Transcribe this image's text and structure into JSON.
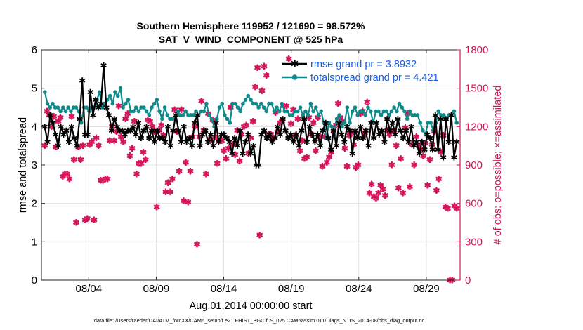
{
  "chart_data": {
    "type": "line",
    "title_line1": "Southern Hemisphere 119952 / 121690 = 98.572%",
    "title_line2": "SAT_V_WIND_COMPONENT @ 525 hPa",
    "xlabel": "Aug.01,2014 00:00:00 start",
    "ylabel_left": "rmse and totalspread",
    "ylabel_right": "# of obs: o=possible; ×=assimilated",
    "footer": "data file: /Users/raeder/DAI/ATM_forcXX/CAM6_setup/f.e21.FHIST_BGC.f09_025.CAM6assim.011/Diags_NTrS_2014-08/obs_diag_output.nc",
    "xlim": [
      0.5,
      31.5
    ],
    "ylim_left": [
      0,
      6
    ],
    "ylim_right": [
      0,
      1800
    ],
    "x_ticks": [
      {
        "value": 4,
        "label": "08/04"
      },
      {
        "value": 9,
        "label": "08/09"
      },
      {
        "value": 14,
        "label": "08/14"
      },
      {
        "value": 19,
        "label": "08/19"
      },
      {
        "value": 24,
        "label": "08/24"
      },
      {
        "value": 29,
        "label": "08/29"
      }
    ],
    "y_ticks_left": [
      "0",
      "1",
      "2",
      "3",
      "4",
      "5",
      "6"
    ],
    "y_ticks_right": [
      "0",
      "300",
      "600",
      "900",
      "1200",
      "1500",
      "1800"
    ],
    "colors": {
      "rmse": "#000000",
      "spread": "#0f8a8a",
      "obs": "#d4145a",
      "legend_text": "#1a5fe0"
    },
    "series": [
      {
        "name": "rmse",
        "legend": "rmse grand pr = 3.8932",
        "values": [
          4.0,
          3.6,
          4.3,
          4.1,
          3.8,
          3.5,
          4.0,
          3.8,
          3.9,
          3.6,
          4.0,
          3.7,
          3.5,
          4.2,
          5.2,
          3.8,
          3.8,
          4.9,
          4.3,
          4.7,
          4.5,
          4.6,
          5.6,
          4.5,
          4.3,
          3.9,
          4.2,
          4.0,
          3.9,
          3.9,
          3.8,
          3.9,
          3.9,
          4.0,
          3.8,
          4.1,
          3.7,
          3.9,
          4.0,
          3.7,
          3.9,
          3.6,
          3.9,
          3.7,
          3.7,
          3.6,
          4.0,
          3.5,
          3.9,
          4.3,
          3.9,
          3.6,
          4.0,
          3.6,
          3.7,
          3.5,
          4.1,
          4.3,
          3.5,
          3.8,
          3.9,
          3.6,
          3.8,
          3.5,
          4.1,
          3.6,
          3.8,
          3.8,
          3.7,
          3.6,
          3.3,
          3.7,
          3.5,
          3.9,
          3.3,
          3.6,
          3.8,
          3.3,
          3.5,
          3.0,
          3.0,
          3.8,
          3.9,
          3.7,
          3.8,
          3.6,
          3.7,
          4.0,
          3.8,
          4.2,
          3.9,
          3.7,
          3.8,
          3.6,
          3.8,
          3.5,
          3.9,
          4.2,
          3.6,
          4.0,
          3.8,
          3.6,
          3.8,
          3.5,
          3.9,
          4.1,
          3.7,
          3.4,
          3.9,
          3.5,
          4.1,
          3.8,
          3.6,
          4.0,
          3.9,
          3.3,
          3.9,
          3.7,
          4.0,
          3.7,
          3.9,
          3.5,
          4.1,
          3.7,
          4.1,
          3.8,
          3.9,
          3.6,
          4.2,
          3.9,
          4.1,
          3.8,
          4.2,
          3.9,
          3.7,
          3.9,
          3.6,
          4.0,
          3.5,
          3.6,
          3.3,
          3.6,
          3.4,
          3.8,
          3.7,
          3.4,
          4.3,
          3.4,
          4.2,
          3.2,
          4.2,
          3.6,
          4.3,
          3.2,
          3.6
        ]
      },
      {
        "name": "totalspread",
        "legend": "totalspread grand pr = 4.421",
        "values": [
          4.9,
          4.6,
          4.5,
          4.6,
          4.5,
          4.5,
          4.4,
          4.5,
          4.4,
          4.5,
          4.4,
          4.5,
          4.5,
          4.4,
          4.1,
          4.5,
          4.5,
          4.4,
          4.5,
          4.5,
          4.7,
          4.9,
          4.5,
          4.6,
          4.7,
          4.8,
          4.6,
          4.9,
          4.8,
          5.0,
          4.5,
          4.6,
          4.7,
          4.4,
          4.4,
          4.5,
          4.4,
          4.5,
          4.5,
          4.4,
          4.3,
          4.5,
          4.6,
          4.7,
          4.4,
          4.2,
          4.5,
          4.3,
          4.2,
          4.2,
          4.2,
          4.4,
          4.3,
          4.3,
          4.4,
          4.3,
          4.3,
          4.3,
          4.4,
          4.3,
          4.4,
          4.4,
          4.6,
          4.3,
          4.2,
          4.0,
          4.2,
          4.5,
          4.6,
          4.3,
          4.2,
          4.1,
          4.6,
          4.6,
          4.5,
          4.4,
          4.6,
          4.7,
          4.8,
          4.7,
          4.6,
          4.6,
          4.5,
          4.6,
          4.5,
          4.4,
          4.6,
          4.6,
          4.4,
          4.5,
          4.4,
          4.6,
          4.4,
          4.4,
          4.3,
          4.3,
          4.4,
          4.4,
          4.5,
          4.3,
          4.4,
          4.3,
          4.6,
          4.4,
          4.5,
          4.3,
          4.4,
          4.1,
          3.7,
          4.1,
          4.0,
          3.8,
          4.2,
          4.3,
          4.0,
          4.1,
          4.5,
          4.1,
          4.4,
          4.5,
          4.3,
          4.4,
          4.4,
          4.3,
          4.5,
          4.4,
          4.1,
          4.4,
          4.4,
          4.3,
          4.4,
          4.4,
          4.3,
          4.4,
          4.5,
          4.4,
          4.6,
          4.5,
          4.4,
          4.2,
          4.4,
          4.3,
          4.3,
          4.3,
          4.1,
          3.9,
          3.8,
          4.1,
          4.1,
          3.9,
          4.1,
          4.4,
          4.3,
          4.3,
          4.2,
          4.3,
          4.3,
          4.4,
          4.1
        ]
      },
      {
        "name": "obs",
        "legend": "",
        "values": [
          1050,
          1320,
          1290,
          1200,
          1280,
          1040,
          1240,
          1270,
          810,
          830,
          830,
          790,
          1280,
          940,
          450,
          1040,
          940,
          1050,
          470,
          480,
          1060,
          1080,
          470,
          1110,
          1050,
          780,
          780,
          790,
          790,
          1090,
          1200,
          1090,
          1160,
          1360,
          1120,
          1080,
          1260,
          1300,
          970,
          1030,
          1240,
          830,
          910,
          910,
          1000,
          940,
          1250,
          1240,
          1200,
          1160,
          570,
          1170,
          1210,
          1130,
          690,
          760,
          690,
          790,
          1330,
          1160,
          850,
          1330,
          620,
          920,
          610,
          850,
          1120,
          1200,
          280,
          1120,
          1400,
          1170,
          830,
          1300,
          1100,
          1250,
          1120,
          910,
          1090,
          1090,
          1010,
          950,
          1030,
          1350,
          1060,
          980,
          1170,
          930,
          1140,
          1200,
          1210,
          990,
          1110,
          1240,
          1510,
          1660,
          350,
          1480,
          1670,
          1600,
          1140,
          1140,
          1110,
          1310,
          1160,
          1230,
          1240,
          1360,
          1360,
          1730,
          1220,
          1330,
          1130,
          1260,
          1010,
          1090,
          950,
          960,
          1270,
          1140,
          1230,
          1010,
          1270,
          1120,
          890,
          1120,
          920,
          960,
          1000,
          1160,
          1210,
          1380,
          1270,
          1240,
          1030,
          890,
          1130,
          1150,
          1060,
          880,
          900,
          1300,
          1320,
          1150,
          1390,
          680,
          750,
          650,
          640,
          680,
          740,
          710,
          660,
          1170,
          1140,
          900,
          1170,
          1050,
          720,
          950,
          680,
          1190,
          1300,
          730,
          1060,
          900,
          1120,
          1050,
          1020,
          970,
          1070,
          740,
          940,
          1060,
          1160,
          700,
          790,
          1000,
          1130,
          570,
          560,
          0,
          0,
          580,
          560
        ]
      }
    ]
  }
}
